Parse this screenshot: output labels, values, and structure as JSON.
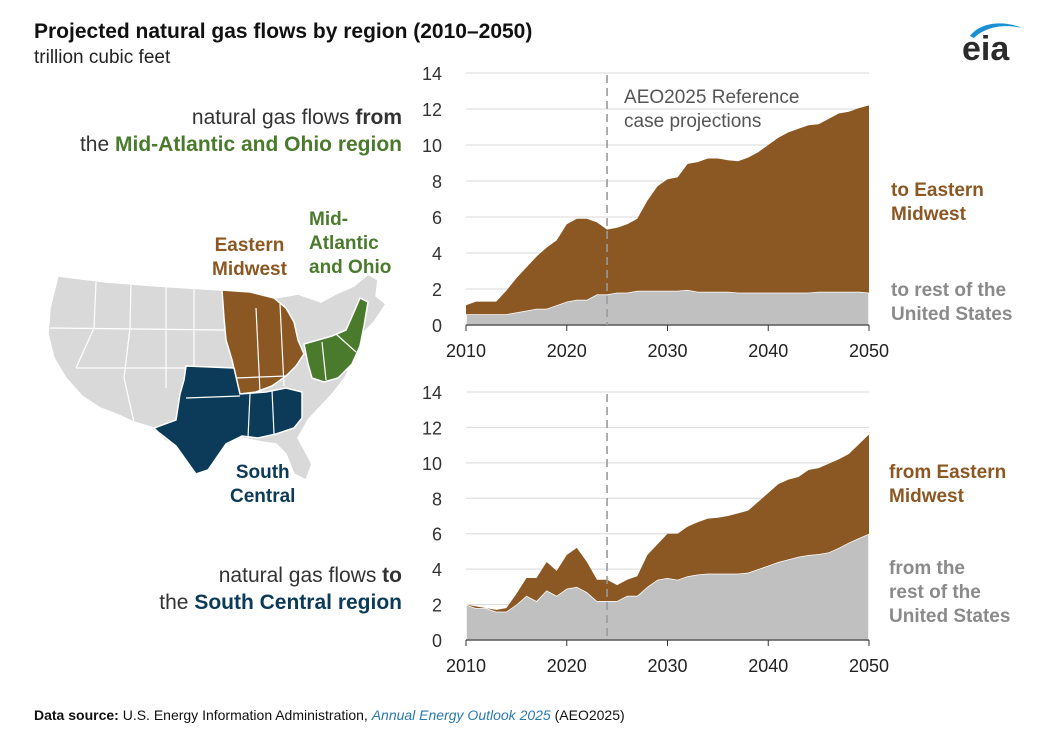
{
  "title": "Projected natural gas flows by region (2010–2050)",
  "subtitle": "trillion cubic feet",
  "logo": {
    "text": "eia",
    "icon": "eia-logo",
    "swoosh_color": "#1a8fd4"
  },
  "left_panel": {
    "top_desc": {
      "pre1": "natural gas flows ",
      "bold1": "from",
      "pre2": "the ",
      "region": "Mid-Atlantic and Ohio region"
    },
    "bottom_desc": {
      "pre1": "natural gas flows ",
      "bold1": "to",
      "pre2": "the ",
      "region": "South Central region"
    },
    "map_labels": {
      "eastern_line1": "Eastern",
      "eastern_line2": "Midwest",
      "midatl_line1": "Mid-",
      "midatl_line2": "Atlantic",
      "midatl_line3": "and Ohio",
      "south_line1": "South",
      "south_line2": "Central"
    },
    "map_icon": "us-states-map"
  },
  "colors": {
    "brown": "#8b5722",
    "gray_area": "#c0c0c0",
    "green": "#4a7a2c",
    "navy": "#0b3b58",
    "map_base": "#d9d9d9",
    "map_brown": "#8b5722",
    "map_green": "#4a7a2c",
    "map_navy": "#0b3b58",
    "label_gray": "#8a8a8a"
  },
  "footer": {
    "label": "Data source:",
    "text1": " U.S. Energy Information Administration, ",
    "link": "Annual Energy Outlook 2025",
    "text2": " (AEO2025)"
  },
  "chart_data": [
    {
      "type": "area",
      "stacked": true,
      "title": "",
      "xlim": [
        2010,
        2050
      ],
      "ylim": [
        0,
        14
      ],
      "xticks": [
        2010,
        2020,
        2030,
        2040,
        2050
      ],
      "yticks": [
        0,
        2,
        4,
        6,
        8,
        10,
        12,
        14
      ],
      "grid": true,
      "annotation": {
        "x": 2024,
        "line1": "AEO2025 Reference",
        "line2": "case projections"
      },
      "x": [
        2010,
        2011,
        2012,
        2013,
        2014,
        2015,
        2016,
        2017,
        2018,
        2019,
        2020,
        2021,
        2022,
        2023,
        2024,
        2025,
        2026,
        2027,
        2028,
        2029,
        2030,
        2031,
        2032,
        2033,
        2034,
        2035,
        2036,
        2037,
        2038,
        2039,
        2040,
        2041,
        2042,
        2043,
        2044,
        2045,
        2046,
        2047,
        2048,
        2049,
        2050
      ],
      "series": [
        {
          "name": "to rest of the United States",
          "label_line1": "to rest of the",
          "label_line2": "United States",
          "values": [
            0.6,
            0.6,
            0.6,
            0.6,
            0.6,
            0.7,
            0.8,
            0.9,
            0.9,
            1.1,
            1.3,
            1.4,
            1.4,
            1.7,
            1.7,
            1.8,
            1.8,
            1.9,
            1.9,
            1.9,
            1.9,
            1.9,
            1.95,
            1.85,
            1.85,
            1.85,
            1.85,
            1.8,
            1.8,
            1.8,
            1.8,
            1.8,
            1.8,
            1.8,
            1.8,
            1.85,
            1.85,
            1.85,
            1.85,
            1.85,
            1.8
          ]
        },
        {
          "name": "to Eastern Midwest",
          "label_line1": "to Eastern",
          "label_line2": "Midwest",
          "values": [
            0.5,
            0.7,
            0.7,
            0.7,
            1.3,
            1.9,
            2.4,
            2.9,
            3.4,
            3.6,
            4.3,
            4.5,
            4.5,
            4.0,
            3.6,
            3.6,
            3.8,
            4.0,
            5.0,
            5.8,
            6.2,
            6.3,
            7.0,
            7.2,
            7.4,
            7.4,
            7.3,
            7.3,
            7.5,
            7.8,
            8.2,
            8.6,
            8.9,
            9.1,
            9.3,
            9.3,
            9.6,
            9.9,
            10.0,
            10.2,
            10.4
          ]
        }
      ]
    },
    {
      "type": "area",
      "stacked": true,
      "title": "",
      "xlim": [
        2010,
        2050
      ],
      "ylim": [
        0,
        14
      ],
      "xticks": [
        2010,
        2020,
        2030,
        2040,
        2050
      ],
      "yticks": [
        0,
        2,
        4,
        6,
        8,
        10,
        12,
        14
      ],
      "grid": true,
      "annotation": {
        "x": 2024
      },
      "x": [
        2010,
        2011,
        2012,
        2013,
        2014,
        2015,
        2016,
        2017,
        2018,
        2019,
        2020,
        2021,
        2022,
        2023,
        2024,
        2025,
        2026,
        2027,
        2028,
        2029,
        2030,
        2031,
        2032,
        2033,
        2034,
        2035,
        2036,
        2037,
        2038,
        2039,
        2040,
        2041,
        2042,
        2043,
        2044,
        2045,
        2046,
        2047,
        2048,
        2049,
        2050
      ],
      "series": [
        {
          "name": "from the rest of the United States",
          "label_line1": "from the",
          "label_line2": "rest of the",
          "label_line3": "United States",
          "values": [
            2.0,
            1.8,
            1.8,
            1.6,
            1.6,
            2.0,
            2.5,
            2.2,
            2.8,
            2.5,
            2.9,
            3.0,
            2.7,
            2.2,
            2.2,
            2.2,
            2.5,
            2.5,
            3.0,
            3.4,
            3.5,
            3.4,
            3.6,
            3.7,
            3.75,
            3.75,
            3.75,
            3.75,
            3.8,
            4.0,
            4.2,
            4.4,
            4.55,
            4.7,
            4.8,
            4.85,
            4.95,
            5.2,
            5.5,
            5.75,
            6.0
          ]
        },
        {
          "name": "from Eastern Midwest",
          "label_line1": "from Eastern",
          "label_line2": "Midwest",
          "values": [
            0.0,
            0.1,
            0.0,
            0.1,
            0.2,
            0.6,
            1.0,
            1.3,
            1.6,
            1.4,
            1.9,
            2.2,
            1.7,
            1.2,
            1.2,
            0.9,
            0.9,
            1.1,
            1.8,
            2.0,
            2.5,
            2.6,
            2.8,
            2.95,
            3.1,
            3.15,
            3.25,
            3.4,
            3.5,
            3.8,
            4.1,
            4.4,
            4.5,
            4.5,
            4.8,
            4.85,
            5.0,
            5.0,
            5.0,
            5.3,
            5.6
          ]
        }
      ]
    }
  ]
}
